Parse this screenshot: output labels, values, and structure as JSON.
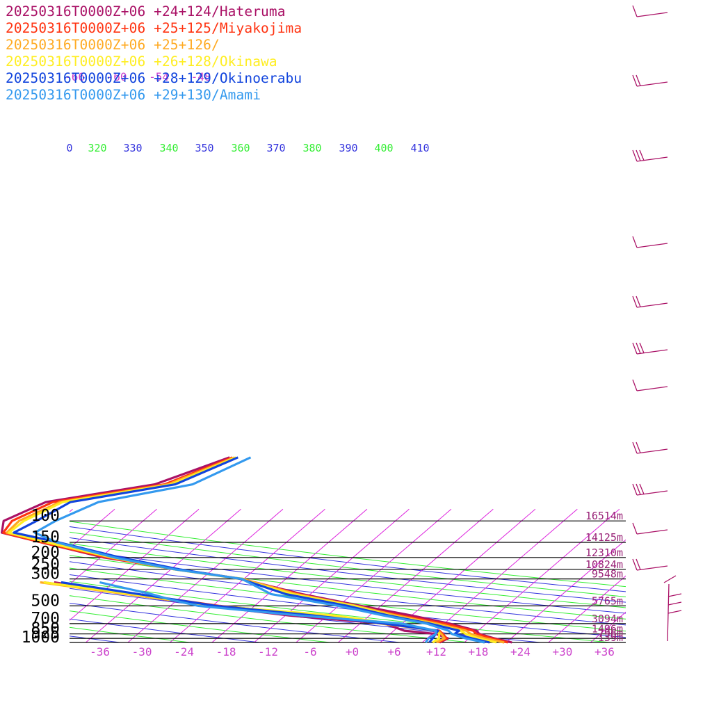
{
  "chart_data": {
    "type": "line",
    "title": "",
    "xlabel": "",
    "ylabel": "",
    "x_ticks": [
      "-36",
      "-30",
      "-24",
      "-18",
      "-12",
      "-6",
      "+0",
      "+6",
      "+12",
      "+18",
      "+24",
      "+30",
      "+36"
    ],
    "x_tick_values": [
      -36,
      -30,
      -24,
      -18,
      -12,
      -6,
      0,
      6,
      12,
      18,
      24,
      30,
      36
    ],
    "pressure_levels": [
      {
        "label": "100",
        "p": 100,
        "height": "16514m"
      },
      {
        "label": "150",
        "p": 150,
        "height": "14125m"
      },
      {
        "label": "200",
        "p": 200,
        "height": "12310m"
      },
      {
        "label": "250",
        "p": 250,
        "height": "10824m"
      },
      {
        "label": "300",
        "p": 300,
        "height": "9548m"
      },
      {
        "label": "500",
        "p": 500,
        "height": "5765m"
      },
      {
        "label": "700",
        "p": 700,
        "height": "3094m"
      },
      {
        "label": "850",
        "p": 850,
        "height": "1496m"
      },
      {
        "label": "925",
        "p": 925,
        "height": "796m"
      },
      {
        "label": "1000",
        "p": 1000,
        "height": "139m"
      }
    ],
    "upper_temp_labels": [
      {
        "label": "-66",
        "t": -66
      },
      {
        "label": "-60",
        "t": -60
      },
      {
        "label": "-54",
        "t": -54
      },
      {
        "label": "-48",
        "t": -48
      }
    ],
    "theta_e_labels": [
      "0",
      "320",
      "330",
      "340",
      "350",
      "360",
      "370",
      "380",
      "390",
      "400",
      "410"
    ],
    "colors": {
      "isotherm": "#dd22dd",
      "isobar": "#000000",
      "theta_green": "#33ee33",
      "theta_blue": "#3333dd",
      "tick_label": "#cc44cc",
      "height_label": "#992277",
      "wind_barb": "#aa1166"
    },
    "series": [
      {
        "name": "20250316T0000Z+06 +24+124/Hateruma",
        "color": "#aa1166",
        "temperature": [
          [
            1000,
            22.8
          ],
          [
            925,
            19.6
          ],
          [
            850,
            16.7
          ],
          [
            800,
            15.8
          ],
          [
            700,
            10.8
          ],
          [
            600,
            4.0
          ],
          [
            500,
            -4.8
          ],
          [
            400,
            -15.2
          ],
          [
            300,
            -26.4
          ],
          [
            250,
            -37.0
          ],
          [
            200,
            -49.5
          ],
          [
            150,
            -61.0
          ],
          [
            125,
            -68.2
          ],
          [
            100,
            -69.9
          ],
          [
            70,
            -67.0
          ],
          [
            50,
            -54.4
          ],
          [
            30,
            -48.2
          ]
        ],
        "dewpoint": [
          [
            1000,
            12.5
          ],
          [
            925,
            13.0
          ],
          [
            850,
            10.5
          ],
          [
            800,
            5.5
          ],
          [
            700,
            1.5
          ],
          [
            600,
            -13.5
          ],
          [
            500,
            -26.5
          ],
          [
            400,
            -40.0
          ],
          [
            320,
            -52.5
          ]
        ]
      },
      {
        "name": "20250316T0000Z+06 +25+125/Miyakojima",
        "color": "#ff3311",
        "temperature": [
          [
            1000,
            22.2
          ],
          [
            925,
            19.2
          ],
          [
            850,
            16.3
          ],
          [
            800,
            15.3
          ],
          [
            700,
            10.0
          ],
          [
            600,
            2.5
          ],
          [
            500,
            -6.0
          ],
          [
            400,
            -15.7
          ],
          [
            300,
            -26.4
          ],
          [
            250,
            -37.5
          ],
          [
            200,
            -49.0
          ],
          [
            150,
            -61.0
          ],
          [
            125,
            -68.0
          ],
          [
            100,
            -68.7
          ],
          [
            70,
            -66.0
          ],
          [
            50,
            -53.0
          ],
          [
            30,
            -47.8
          ]
        ],
        "dewpoint": [
          [
            1000,
            12.3
          ],
          [
            925,
            12.8
          ],
          [
            850,
            11.5
          ],
          [
            800,
            10.5
          ],
          [
            700,
            1.5
          ],
          [
            600,
            -9.5
          ],
          [
            500,
            -25.0
          ],
          [
            450,
            -31.5
          ],
          [
            400,
            -40.0
          ],
          [
            320,
            -54.0
          ]
        ]
      },
      {
        "name": "20250316T0000Z+06 +25+126/",
        "color": "#ffaa22",
        "temperature": [
          [
            1000,
            21.7
          ],
          [
            925,
            18.3
          ],
          [
            850,
            15.5
          ],
          [
            800,
            14.3
          ],
          [
            700,
            9.0
          ],
          [
            600,
            1.8
          ],
          [
            500,
            -5.5
          ],
          [
            400,
            -16.0
          ],
          [
            300,
            -26.2
          ],
          [
            250,
            -37.3
          ],
          [
            200,
            -48.5
          ],
          [
            150,
            -60.2
          ],
          [
            125,
            -67.5
          ],
          [
            100,
            -67.7
          ],
          [
            70,
            -65.0
          ],
          [
            50,
            -52.5
          ],
          [
            30,
            -47.5
          ]
        ],
        "dewpoint": [
          [
            1000,
            12.0
          ],
          [
            925,
            12.5
          ],
          [
            850,
            11.3
          ],
          [
            800,
            10.3
          ],
          [
            700,
            1.0
          ],
          [
            600,
            -8.5
          ],
          [
            500,
            -25.6
          ],
          [
            400,
            -40.3
          ],
          [
            320,
            -54.5
          ]
        ]
      },
      {
        "name": "20250316T0000Z+06 +26+128/Okinawa",
        "color": "#ffee22",
        "temperature": [
          [
            1000,
            20.6
          ],
          [
            925,
            17.3
          ],
          [
            850,
            14.8
          ],
          [
            800,
            13.5
          ],
          [
            700,
            8.3
          ],
          [
            600,
            1.0
          ],
          [
            500,
            -5.8
          ],
          [
            400,
            -16.6
          ],
          [
            300,
            -26.6
          ],
          [
            250,
            -37.6
          ],
          [
            200,
            -48.3
          ],
          [
            150,
            -60.2
          ],
          [
            125,
            -67.2
          ],
          [
            100,
            -67.0
          ],
          [
            70,
            -64.6
          ],
          [
            50,
            -52.0
          ],
          [
            30,
            -47.3
          ]
        ],
        "dewpoint": [
          [
            1000,
            11.5
          ],
          [
            925,
            11.7
          ],
          [
            850,
            11.0
          ],
          [
            800,
            10.0
          ],
          [
            700,
            2.5
          ],
          [
            600,
            -7.0
          ],
          [
            500,
            -25.8
          ],
          [
            400,
            -39.5
          ],
          [
            320,
            -54.0
          ]
        ]
      },
      {
        "name": "20250316T0000Z+06 +28+129/Okinoerabu",
        "color": "#1144dd",
        "temperature": [
          [
            1000,
            19.6
          ],
          [
            925,
            16.4
          ],
          [
            850,
            13.2
          ],
          [
            800,
            13.3
          ],
          [
            700,
            8.0
          ],
          [
            600,
            0.7
          ],
          [
            500,
            -6.7
          ],
          [
            400,
            -17.5
          ],
          [
            300,
            -26.5
          ],
          [
            250,
            -36.8
          ],
          [
            200,
            -47.2
          ],
          [
            150,
            -58.5
          ],
          [
            125,
            -66.5
          ],
          [
            100,
            -65.2
          ],
          [
            70,
            -63.5
          ],
          [
            50,
            -51.5
          ],
          [
            30,
            -47.0
          ]
        ],
        "dewpoint": [
          [
            1000,
            11.0
          ],
          [
            925,
            10.8
          ],
          [
            850,
            10.5
          ],
          [
            800,
            10.3
          ],
          [
            700,
            1.5
          ],
          [
            600,
            -10.0
          ],
          [
            500,
            -25.5
          ],
          [
            400,
            -38.5
          ],
          [
            320,
            -51.5
          ]
        ]
      },
      {
        "name": "20250316T0000Z+06 +29+130/Amami",
        "color": "#3399ee",
        "temperature": [
          [
            1000,
            18.9
          ],
          [
            925,
            15.5
          ],
          [
            850,
            12.8
          ],
          [
            800,
            11.8
          ],
          [
            700,
            7.5
          ],
          [
            600,
            0.0
          ],
          [
            500,
            -8.0
          ],
          [
            400,
            -19.6
          ],
          [
            300,
            -26.3
          ],
          [
            250,
            -37.5
          ],
          [
            200,
            -48.0
          ],
          [
            150,
            -58.8
          ],
          [
            125,
            -63.5
          ],
          [
            100,
            -62.5
          ],
          [
            70,
            -59.5
          ],
          [
            50,
            -49.0
          ],
          [
            30,
            -45.2
          ]
        ],
        "dewpoint": [
          [
            1000,
            10.5
          ],
          [
            925,
            10.2
          ],
          [
            850,
            10.5
          ],
          [
            800,
            10.0
          ],
          [
            700,
            4.0
          ],
          [
            600,
            -12.0
          ],
          [
            500,
            -28.0
          ],
          [
            450,
            -32.5
          ],
          [
            400,
            -36.7
          ],
          [
            320,
            -46.0
          ]
        ]
      }
    ]
  }
}
